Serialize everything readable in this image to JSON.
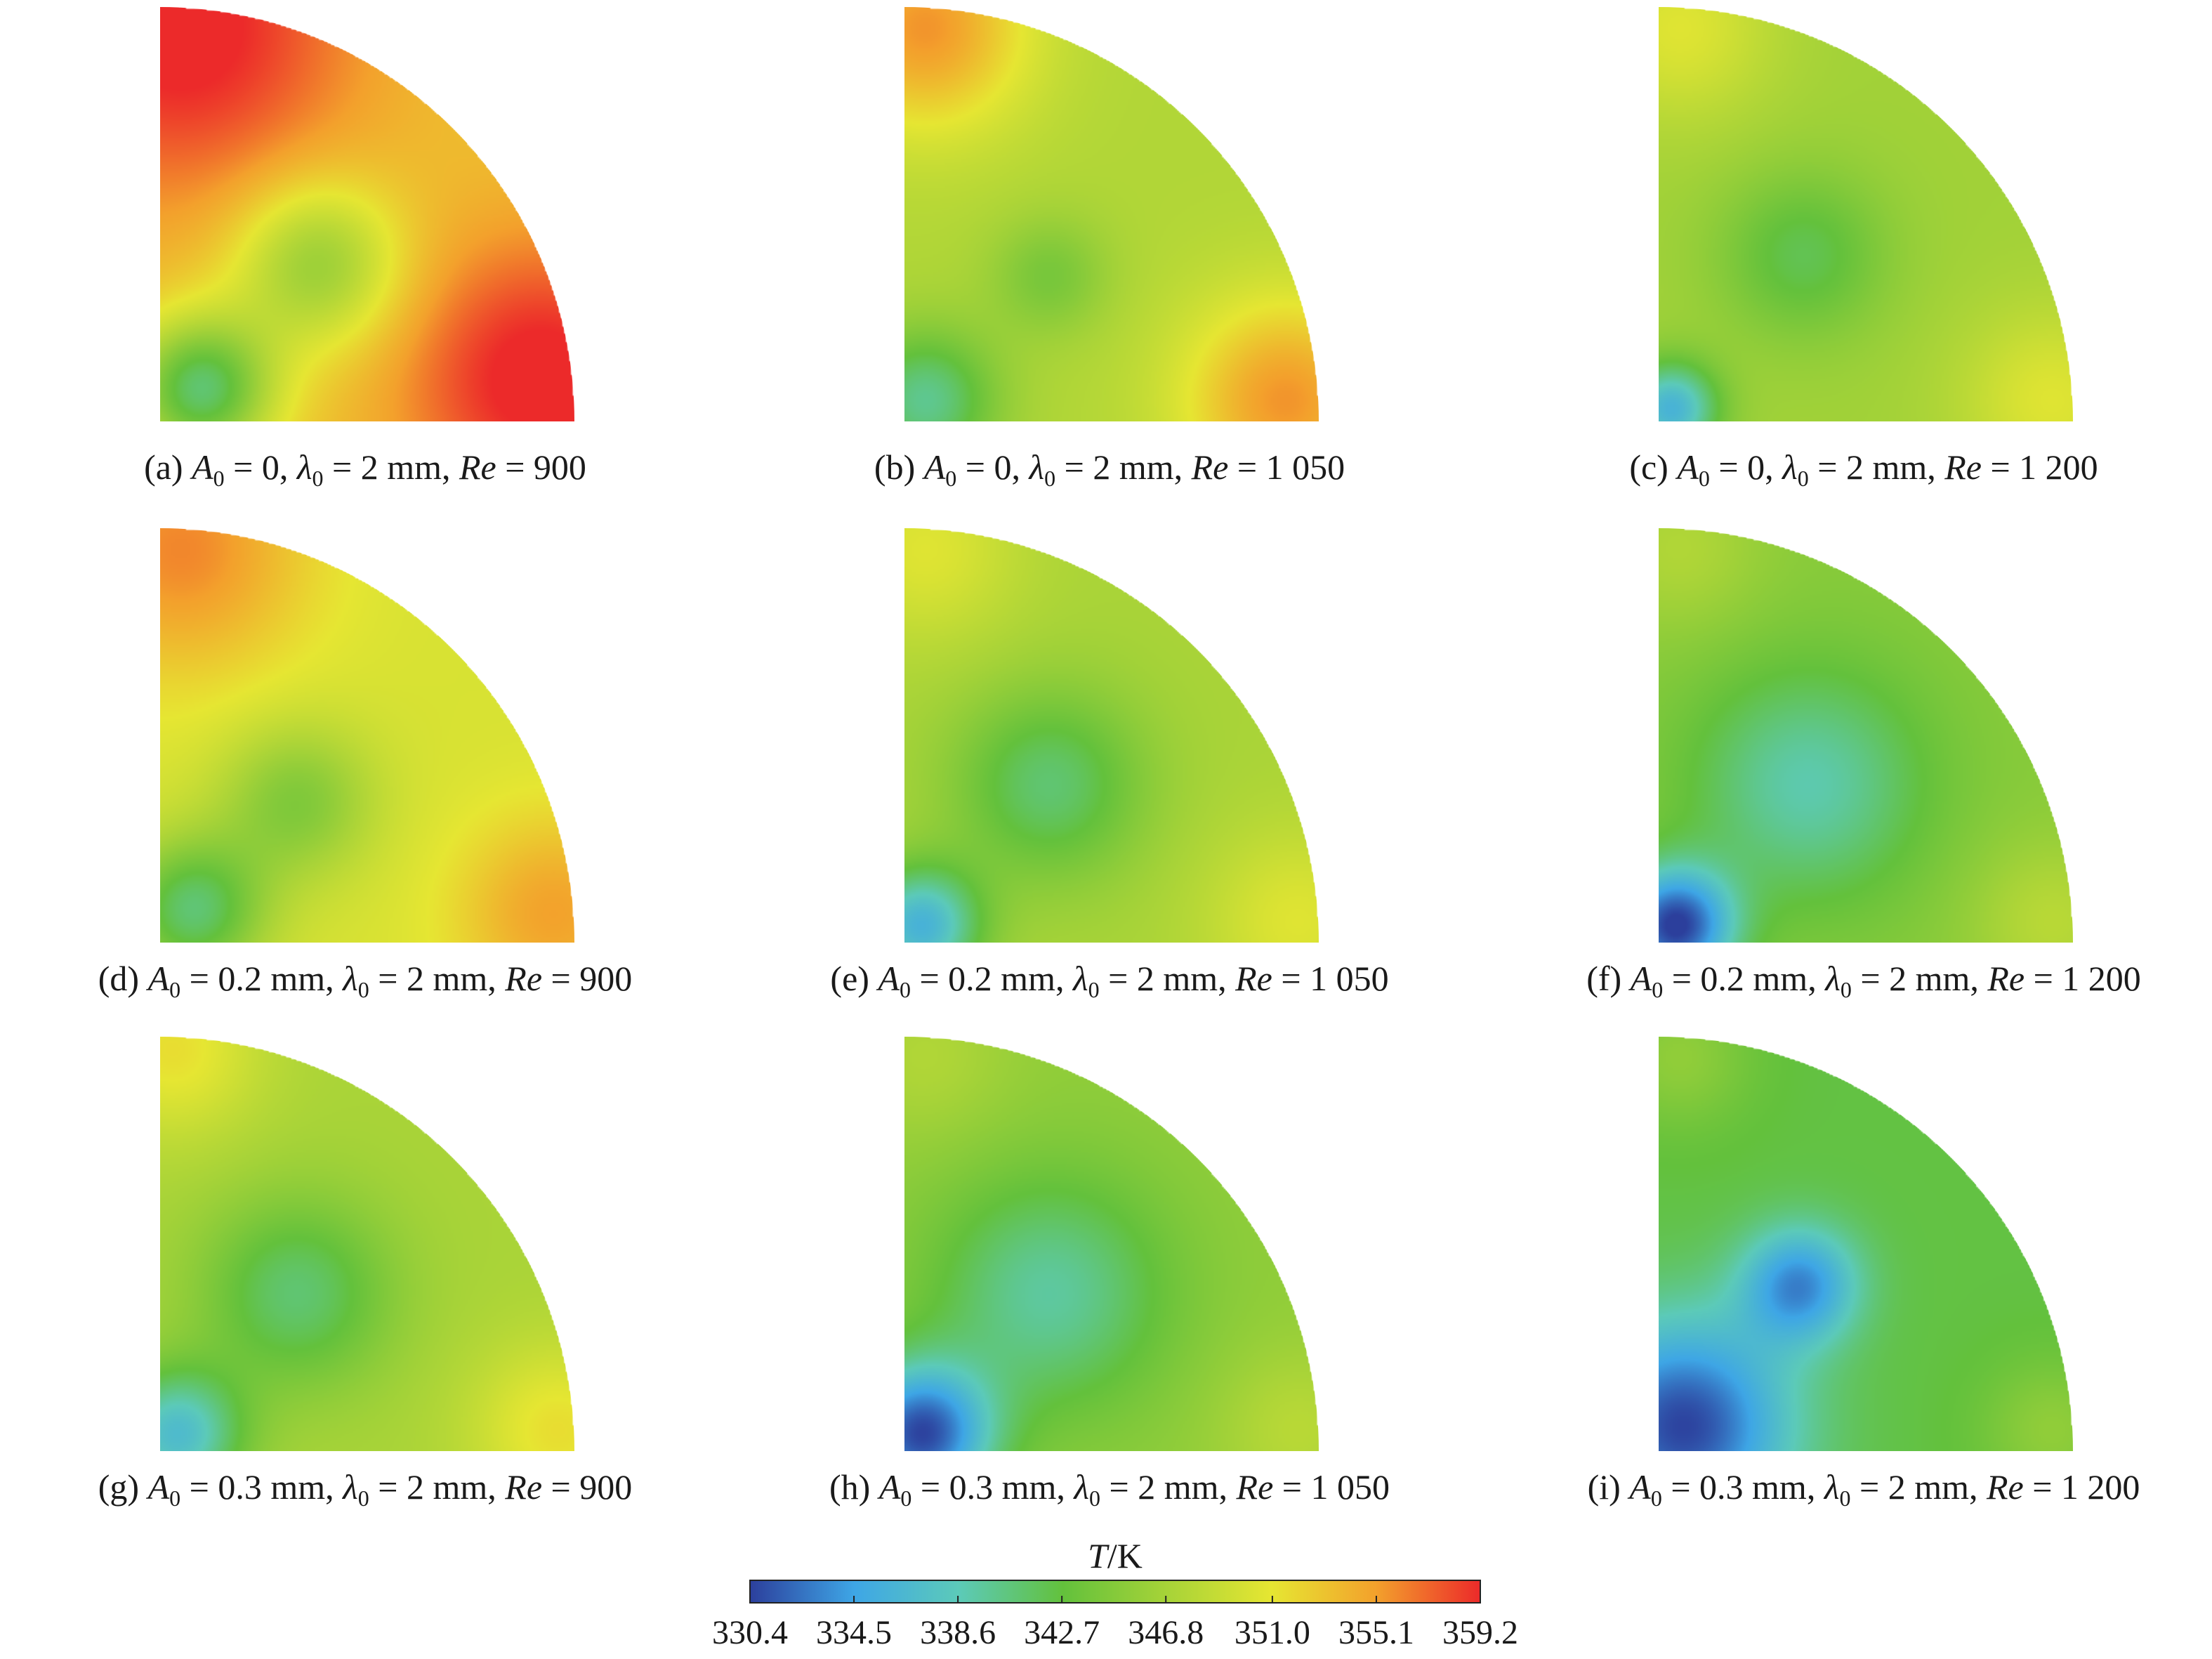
{
  "chart_data": {
    "type": "heatmap",
    "colorbar": {
      "title_var": "T",
      "title_unit": "/K",
      "range": [
        330.4,
        359.2
      ],
      "ticks": [
        "330.4",
        "334.5",
        "338.6",
        "342.7",
        "346.8",
        "351.0",
        "355.1",
        "359.2"
      ],
      "colors": [
        "#2c3f9c",
        "#3ea6e6",
        "#5ccab9",
        "#63c13c",
        "#a7d338",
        "#e6e632",
        "#f3a12c",
        "#ec2a2a"
      ]
    },
    "panels": [
      {
        "letter": "(a)",
        "A0": "0",
        "lambda0": "2 mm",
        "Re": "900",
        "background": 353.0,
        "blobs": [
          {
            "u": 0.05,
            "v": 0.95,
            "value": 360.0,
            "sigma": 0.3
          },
          {
            "u": 0.92,
            "v": 0.1,
            "value": 360.0,
            "sigma": 0.24
          },
          {
            "u": 0.38,
            "v": 0.38,
            "value": 345.5,
            "sigma": 0.14
          },
          {
            "u": 0.1,
            "v": 0.08,
            "value": 341.0,
            "sigma": 0.12
          }
        ]
      },
      {
        "letter": "(b)",
        "A0": "0",
        "lambda0": "2 mm",
        "Re": "1 050",
        "background": 347.5,
        "blobs": [
          {
            "u": 0.05,
            "v": 0.95,
            "value": 355.5,
            "sigma": 0.18
          },
          {
            "u": 0.92,
            "v": 0.05,
            "value": 355.5,
            "sigma": 0.18
          },
          {
            "u": 0.35,
            "v": 0.35,
            "value": 344.0,
            "sigma": 0.1
          },
          {
            "u": 0.05,
            "v": 0.05,
            "value": 340.0,
            "sigma": 0.12
          }
        ]
      },
      {
        "letter": "(c)",
        "A0": "0",
        "lambda0": "2 mm",
        "Re": "1 200",
        "background": 346.5,
        "blobs": [
          {
            "u": 0.05,
            "v": 0.95,
            "value": 350.5,
            "sigma": 0.16
          },
          {
            "u": 0.95,
            "v": 0.05,
            "value": 350.5,
            "sigma": 0.16
          },
          {
            "u": 0.35,
            "v": 0.4,
            "value": 342.0,
            "sigma": 0.14
          },
          {
            "u": 0.03,
            "v": 0.03,
            "value": 336.0,
            "sigma": 0.08
          }
        ]
      },
      {
        "letter": "(d)",
        "A0": "0.2 mm",
        "lambda0": "2 mm",
        "Re": "900",
        "background": 350.0,
        "blobs": [
          {
            "u": 0.05,
            "v": 0.95,
            "value": 356.0,
            "sigma": 0.22
          },
          {
            "u": 0.95,
            "v": 0.07,
            "value": 355.0,
            "sigma": 0.17
          },
          {
            "u": 0.33,
            "v": 0.34,
            "value": 344.5,
            "sigma": 0.13
          },
          {
            "u": 0.08,
            "v": 0.08,
            "value": 341.0,
            "sigma": 0.12
          }
        ]
      },
      {
        "letter": "(e)",
        "A0": "0.2 mm",
        "lambda0": "2 mm",
        "Re": "1 050",
        "background": 347.0,
        "blobs": [
          {
            "u": 0.05,
            "v": 0.95,
            "value": 350.5,
            "sigma": 0.16
          },
          {
            "u": 0.95,
            "v": 0.05,
            "value": 350.5,
            "sigma": 0.16
          },
          {
            "u": 0.35,
            "v": 0.38,
            "value": 341.0,
            "sigma": 0.16
          },
          {
            "u": 0.04,
            "v": 0.04,
            "value": 336.0,
            "sigma": 0.1
          }
        ]
      },
      {
        "letter": "(f)",
        "A0": "0.2 mm",
        "lambda0": "2 mm",
        "Re": "1 200",
        "background": 345.0,
        "blobs": [
          {
            "u": 0.05,
            "v": 0.95,
            "value": 347.5,
            "sigma": 0.14
          },
          {
            "u": 0.95,
            "v": 0.05,
            "value": 348.0,
            "sigma": 0.14
          },
          {
            "u": 0.36,
            "v": 0.38,
            "value": 339.0,
            "sigma": 0.2
          },
          {
            "u": 0.04,
            "v": 0.04,
            "value": 330.4,
            "sigma": 0.1
          }
        ]
      },
      {
        "letter": "(g)",
        "A0": "0.3 mm",
        "lambda0": "2 mm",
        "Re": "900",
        "background": 347.0,
        "blobs": [
          {
            "u": 0.03,
            "v": 0.97,
            "value": 351.5,
            "sigma": 0.15
          },
          {
            "u": 0.96,
            "v": 0.05,
            "value": 351.5,
            "sigma": 0.15
          },
          {
            "u": 0.33,
            "v": 0.38,
            "value": 341.0,
            "sigma": 0.16
          },
          {
            "u": 0.04,
            "v": 0.04,
            "value": 337.0,
            "sigma": 0.11
          }
        ]
      },
      {
        "letter": "(h)",
        "A0": "0.3 mm",
        "lambda0": "2 mm",
        "Re": "1 050",
        "background": 345.5,
        "blobs": [
          {
            "u": 0.05,
            "v": 0.95,
            "value": 347.5,
            "sigma": 0.14
          },
          {
            "u": 0.95,
            "v": 0.05,
            "value": 348.0,
            "sigma": 0.14
          },
          {
            "u": 0.35,
            "v": 0.38,
            "value": 339.5,
            "sigma": 0.2
          },
          {
            "u": 0.04,
            "v": 0.04,
            "value": 331.0,
            "sigma": 0.12
          }
        ]
      },
      {
        "letter": "(i)",
        "A0": "0.3 mm",
        "lambda0": "2 mm",
        "Re": "1 200",
        "background": 342.5,
        "blobs": [
          {
            "u": 0.05,
            "v": 0.95,
            "value": 345.5,
            "sigma": 0.12
          },
          {
            "u": 0.95,
            "v": 0.05,
            "value": 345.5,
            "sigma": 0.12
          },
          {
            "u": 0.34,
            "v": 0.4,
            "value": 333.5,
            "sigma": 0.1
          },
          {
            "u": 0.06,
            "v": 0.06,
            "value": 330.6,
            "sigma": 0.18
          }
        ]
      }
    ]
  }
}
